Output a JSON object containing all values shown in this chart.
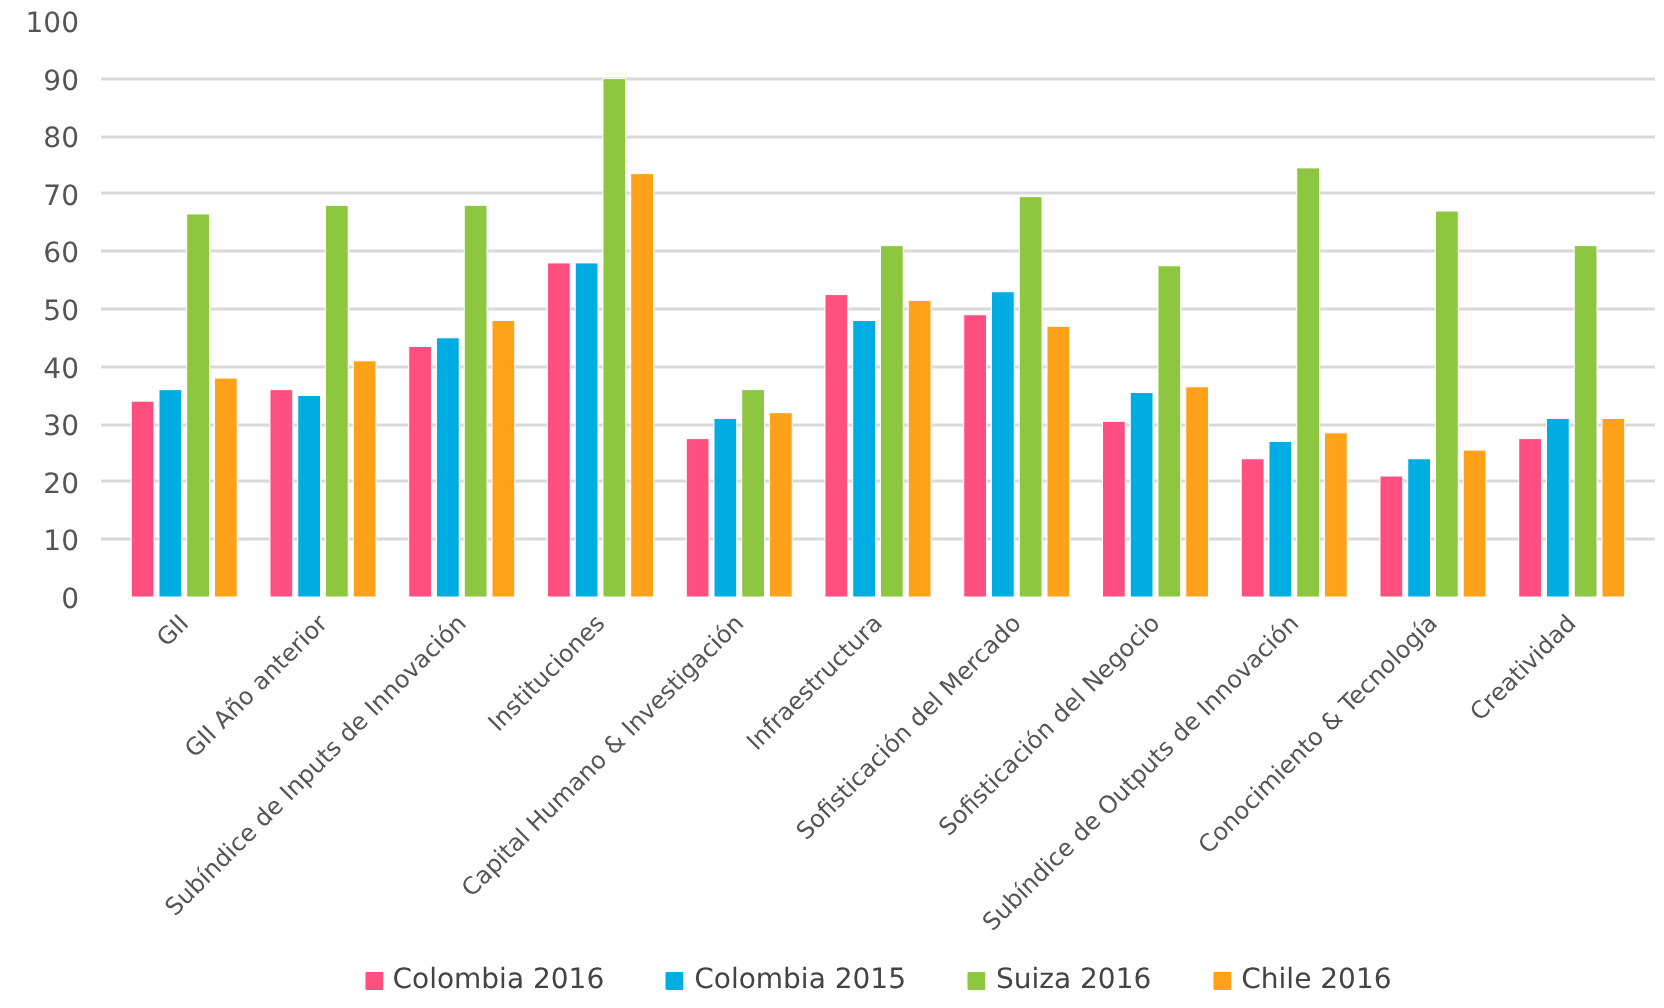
{
  "chart_data": {
    "type": "bar",
    "categories": [
      "GII",
      "GII Año anterior",
      "Subíndice de Inputs de Innovación",
      "Instituciones",
      "Capital Humano & Investigación",
      "Infraestructura",
      "Sofisticación del Mercado",
      "Sofisticación del Negocio",
      "Subíndice de Outputs de Innovación",
      "Conocimiento & Tecnología",
      "Creatividad"
    ],
    "series": [
      {
        "name": "Colombia 2016",
        "color": "#ff4f81",
        "values": [
          34,
          36,
          43.5,
          58,
          27.5,
          52.5,
          49,
          30.5,
          24,
          21,
          27.5
        ]
      },
      {
        "name": "Colombia 2015",
        "color": "#00ade3",
        "values": [
          36,
          35,
          45,
          58,
          31,
          48,
          53,
          35.5,
          27,
          24,
          31
        ]
      },
      {
        "name": "Suiza 2016",
        "color": "#8dc63f",
        "values": [
          66.5,
          68,
          68,
          90,
          36,
          61,
          69.5,
          57.5,
          74.5,
          67,
          61
        ]
      },
      {
        "name": "Chile 2016",
        "color": "#ffa21a",
        "values": [
          38,
          41,
          48,
          73.5,
          32,
          51.5,
          47,
          36.5,
          28.5,
          25.5,
          31
        ]
      }
    ],
    "ylim": [
      0,
      100
    ],
    "yticks": [
      0,
      10,
      20,
      30,
      40,
      50,
      60,
      70,
      80,
      90,
      100
    ],
    "grid": "y",
    "legend": "bottom"
  }
}
